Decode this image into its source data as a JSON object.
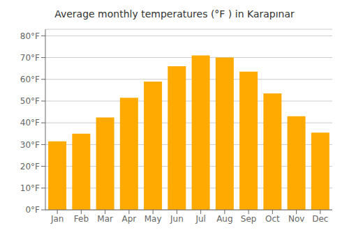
{
  "chart_data": {
    "type": "bar",
    "title": "Average monthly temperatures (°F ) in Karapınar",
    "categories": [
      "Jan",
      "Feb",
      "Mar",
      "Apr",
      "May",
      "Jun",
      "Jul",
      "Aug",
      "Sep",
      "Oct",
      "Nov",
      "Dec"
    ],
    "values": [
      31.5,
      35.0,
      42.5,
      51.5,
      59.0,
      66.0,
      71.0,
      70.0,
      63.5,
      53.5,
      43.0,
      35.5
    ],
    "color": "#FFAA00",
    "ylim": [
      0,
      83
    ],
    "yticks": [
      {
        "value": 0,
        "label": "0°F"
      },
      {
        "value": 10,
        "label": "10°F"
      },
      {
        "value": 20,
        "label": "20°F"
      },
      {
        "value": 30,
        "label": "30°F"
      },
      {
        "value": 40,
        "label": "40°F"
      },
      {
        "value": 50,
        "label": "50°F"
      },
      {
        "value": 60,
        "label": "60°F"
      },
      {
        "value": 70,
        "label": "70°F"
      },
      {
        "value": 80,
        "label": "80°F"
      }
    ],
    "grid": true
  }
}
